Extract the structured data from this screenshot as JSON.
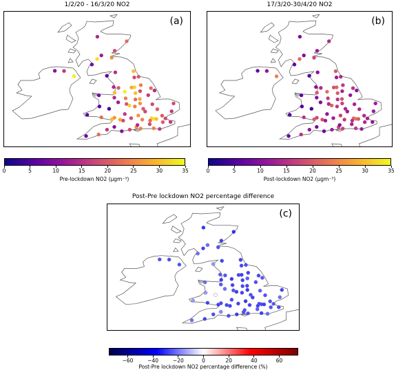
{
  "panels": [
    {
      "id": "a",
      "title": "1/2/20 - 16/3/20 NO2",
      "label": "(a)"
    },
    {
      "id": "b",
      "title": "17/3/20-30/4/20  NO2",
      "label": "(b)"
    },
    {
      "id": "c",
      "title": "Post-Pre lockdown NO2 percentage difference",
      "label": "(c)"
    }
  ],
  "colorbars": [
    {
      "id": "a",
      "label": "Pre-lockdown NO2 (μgm⁻³)",
      "ticks": [
        "0",
        "5",
        "10",
        "15",
        "20",
        "25",
        "30",
        "35"
      ],
      "range": [
        0,
        35
      ],
      "cmap": "plasma"
    },
    {
      "id": "b",
      "label": "Post-lockdown NO2 (μgm⁻³)",
      "ticks": [
        "0",
        "5",
        "10",
        "15",
        "20",
        "25",
        "30",
        "35"
      ],
      "range": [
        0,
        35
      ],
      "cmap": "plasma"
    },
    {
      "id": "c",
      "label": "Post-Pre lockdown NO2 percentage difference (%)",
      "ticks": [
        "−60",
        "−40",
        "−20",
        "0",
        "20",
        "40",
        "60"
      ],
      "tick_values": [
        -60,
        -40,
        -20,
        0,
        20,
        40,
        60
      ],
      "range": [
        -75,
        75
      ],
      "cmap": "seismic"
    }
  ],
  "colors": {
    "coastline": "#555555",
    "plasma": [
      "#0d0887",
      "#5b02a3",
      "#9a179b",
      "#cb4678",
      "#eb7852",
      "#fbb32f",
      "#f0f921"
    ],
    "seismic": [
      "#00004c",
      "#0000ff",
      "#ffffff",
      "#ff0000",
      "#7f0000"
    ]
  },
  "stations": [
    {
      "lon": -4.25,
      "lat": 55.86,
      "pre": 33,
      "post": 22,
      "diff": -33
    },
    {
      "lon": -3.19,
      "lat": 55.95,
      "pre": 26,
      "post": 18,
      "diff": -30
    },
    {
      "lon": -2.1,
      "lat": 57.15,
      "pre": 22,
      "post": 14,
      "diff": -36
    },
    {
      "lon": -4.23,
      "lat": 57.48,
      "pre": 14,
      "post": 9,
      "diff": -35
    },
    {
      "lon": -2.97,
      "lat": 56.46,
      "pre": 18,
      "post": 12,
      "diff": -33
    },
    {
      "lon": -3.94,
      "lat": 56.12,
      "pre": 12,
      "post": 9,
      "diff": -25
    },
    {
      "lon": -4.63,
      "lat": 55.46,
      "pre": 8,
      "post": 6,
      "diff": -25
    },
    {
      "lon": -5.93,
      "lat": 54.6,
      "pre": 34,
      "post": 24,
      "diff": -30
    },
    {
      "lon": -6.65,
      "lat": 54.99,
      "pre": 16,
      "post": 11,
      "diff": -31
    },
    {
      "lon": -7.32,
      "lat": 55.0,
      "pre": 10,
      "post": 7,
      "diff": -30
    },
    {
      "lon": -1.61,
      "lat": 54.97,
      "pre": 30,
      "post": 20,
      "diff": -33
    },
    {
      "lon": -1.55,
      "lat": 54.52,
      "pre": 18,
      "post": 12,
      "diff": -33
    },
    {
      "lon": -1.24,
      "lat": 54.57,
      "pre": 20,
      "post": 14,
      "diff": -30
    },
    {
      "lon": -2.93,
      "lat": 54.89,
      "pre": 15,
      "post": 10,
      "diff": -33
    },
    {
      "lon": -3.54,
      "lat": 54.64,
      "pre": 6,
      "post": 5,
      "diff": -17
    },
    {
      "lon": -1.08,
      "lat": 53.96,
      "pre": 24,
      "post": 16,
      "diff": -33
    },
    {
      "lon": -1.54,
      "lat": 53.8,
      "pre": 32,
      "post": 21,
      "diff": -34
    },
    {
      "lon": -1.75,
      "lat": 53.79,
      "pre": 28,
      "post": 19,
      "diff": -32
    },
    {
      "lon": -0.34,
      "lat": 53.74,
      "pre": 22,
      "post": 15,
      "diff": -32
    },
    {
      "lon": -2.24,
      "lat": 53.48,
      "pre": 34,
      "post": 22,
      "diff": -35
    },
    {
      "lon": -2.98,
      "lat": 53.41,
      "pre": 30,
      "post": 20,
      "diff": -33
    },
    {
      "lon": -2.7,
      "lat": 53.76,
      "pre": 20,
      "post": 14,
      "diff": -30
    },
    {
      "lon": -3.05,
      "lat": 53.82,
      "pre": 14,
      "post": 10,
      "diff": -29
    },
    {
      "lon": -1.47,
      "lat": 53.38,
      "pre": 30,
      "post": 20,
      "diff": -33
    },
    {
      "lon": -1.13,
      "lat": 53.52,
      "pre": 18,
      "post": 13,
      "diff": -28
    },
    {
      "lon": -2.18,
      "lat": 53.0,
      "pre": 24,
      "post": 16,
      "diff": -33
    },
    {
      "lon": -1.47,
      "lat": 52.92,
      "pre": 22,
      "post": 15,
      "diff": -32
    },
    {
      "lon": -1.15,
      "lat": 52.95,
      "pre": 28,
      "post": 19,
      "diff": -32
    },
    {
      "lon": -1.13,
      "lat": 52.63,
      "pre": 26,
      "post": 17,
      "diff": -35
    },
    {
      "lon": -1.9,
      "lat": 52.48,
      "pre": 32,
      "post": 21,
      "diff": -34
    },
    {
      "lon": -1.51,
      "lat": 52.41,
      "pre": 24,
      "post": 16,
      "diff": -33
    },
    {
      "lon": -2.12,
      "lat": 52.59,
      "pre": 20,
      "post": 14,
      "diff": -30
    },
    {
      "lon": -2.72,
      "lat": 52.71,
      "pre": 12,
      "post": 9,
      "diff": -25
    },
    {
      "lon": -3.38,
      "lat": 52.24,
      "pre": 4,
      "post": 4,
      "diff": 0
    },
    {
      "lon": -4.08,
      "lat": 52.41,
      "pre": 6,
      "post": 5,
      "diff": -17
    },
    {
      "lon": -4.12,
      "lat": 53.22,
      "pre": 8,
      "post": 6,
      "diff": -25
    },
    {
      "lon": -3.0,
      "lat": 53.05,
      "pre": 14,
      "post": 10,
      "diff": -29
    },
    {
      "lon": -0.54,
      "lat": 53.23,
      "pre": 16,
      "post": 11,
      "diff": -31
    },
    {
      "lon": -0.08,
      "lat": 53.57,
      "pre": 14,
      "post": 10,
      "diff": -29
    },
    {
      "lon": 0.12,
      "lat": 52.21,
      "pre": 20,
      "post": 14,
      "diff": -30
    },
    {
      "lon": 1.3,
      "lat": 52.63,
      "pre": 18,
      "post": 12,
      "diff": -33
    },
    {
      "lon": 1.16,
      "lat": 52.06,
      "pre": 16,
      "post": 12,
      "diff": -25
    },
    {
      "lon": -0.24,
      "lat": 52.57,
      "pre": 18,
      "post": 13,
      "diff": -28
    },
    {
      "lon": -0.9,
      "lat": 52.24,
      "pre": 20,
      "post": 14,
      "diff": -30
    },
    {
      "lon": -0.76,
      "lat": 52.04,
      "pre": 18,
      "post": 12,
      "diff": -33
    },
    {
      "lon": -1.26,
      "lat": 51.75,
      "pre": 26,
      "post": 17,
      "diff": -35
    },
    {
      "lon": -2.24,
      "lat": 51.86,
      "pre": 16,
      "post": 11,
      "diff": -31
    },
    {
      "lon": -2.59,
      "lat": 51.45,
      "pre": 28,
      "post": 19,
      "diff": -32
    },
    {
      "lon": -3.18,
      "lat": 51.48,
      "pre": 30,
      "post": 20,
      "diff": -33
    },
    {
      "lon": -3.94,
      "lat": 51.62,
      "pre": 22,
      "post": 15,
      "diff": -32
    },
    {
      "lon": -2.99,
      "lat": 51.59,
      "pre": 26,
      "post": 18,
      "diff": -31
    },
    {
      "lon": -4.97,
      "lat": 51.8,
      "pre": 6,
      "post": 5,
      "diff": -17
    },
    {
      "lon": -1.78,
      "lat": 51.56,
      "pre": 18,
      "post": 12,
      "diff": -33
    },
    {
      "lon": -0.97,
      "lat": 51.45,
      "pre": 24,
      "post": 16,
      "diff": -33
    },
    {
      "lon": -0.13,
      "lat": 51.51,
      "pre": 34,
      "post": 23,
      "diff": -32
    },
    {
      "lon": -0.3,
      "lat": 51.55,
      "pre": 32,
      "post": 22,
      "diff": -31
    },
    {
      "lon": 0.05,
      "lat": 51.5,
      "pre": 30,
      "post": 20,
      "diff": -33
    },
    {
      "lon": 0.47,
      "lat": 51.74,
      "pre": 20,
      "post": 14,
      "diff": -30
    },
    {
      "lon": 0.71,
      "lat": 51.54,
      "pre": 18,
      "post": 13,
      "diff": -28
    },
    {
      "lon": 1.08,
      "lat": 51.28,
      "pre": 16,
      "post": 11,
      "diff": -31
    },
    {
      "lon": 0.52,
      "lat": 51.27,
      "pre": 20,
      "post": 14,
      "diff": -30
    },
    {
      "lon": -0.14,
      "lat": 50.82,
      "pre": 24,
      "post": 16,
      "diff": -33
    },
    {
      "lon": -1.4,
      "lat": 50.9,
      "pre": 26,
      "post": 18,
      "diff": -31
    },
    {
      "lon": -1.09,
      "lat": 50.8,
      "pre": 24,
      "post": 17,
      "diff": -29
    },
    {
      "lon": -1.88,
      "lat": 50.72,
      "pre": 18,
      "post": 12,
      "diff": -33
    },
    {
      "lon": -2.46,
      "lat": 50.61,
      "pre": 10,
      "post": 7,
      "diff": -30
    },
    {
      "lon": -3.53,
      "lat": 50.72,
      "pre": 16,
      "post": 11,
      "diff": -31
    },
    {
      "lon": -4.14,
      "lat": 50.37,
      "pre": 22,
      "post": 15,
      "diff": -32
    },
    {
      "lon": -5.05,
      "lat": 50.26,
      "pre": 8,
      "post": 6,
      "diff": -25
    },
    {
      "lon": -3.0,
      "lat": 50.92,
      "pre": 10,
      "post": 8,
      "diff": -20
    },
    {
      "lon": -1.32,
      "lat": 51.06,
      "pre": 14,
      "post": 10,
      "diff": -29
    },
    {
      "lon": 0.29,
      "lat": 50.77,
      "pre": 16,
      "post": 12,
      "diff": -25
    },
    {
      "lon": -0.43,
      "lat": 51.12,
      "pre": 18,
      "post": 13,
      "diff": -28
    },
    {
      "lon": -0.4,
      "lat": 51.38,
      "pre": 22,
      "post": 15,
      "diff": -32
    },
    {
      "lon": -2.36,
      "lat": 51.38,
      "pre": 18,
      "post": 12,
      "diff": -33
    }
  ]
}
